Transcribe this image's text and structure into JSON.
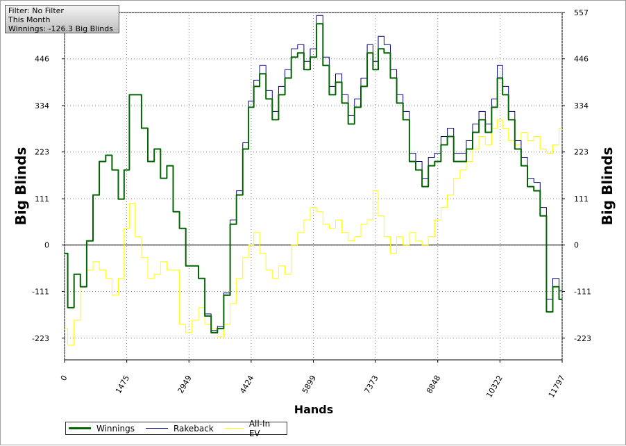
{
  "info": {
    "filter": "Filter: No Filter",
    "period": "This Month",
    "winnings": "Winnings: -126.3 Big Blinds"
  },
  "chart_data": {
    "type": "line",
    "xlabel": "Hands",
    "ylabel_left": "Big Blinds",
    "ylabel_right": "Big Blinds",
    "xlim": [
      0,
      11797
    ],
    "ylim": [
      -275,
      557
    ],
    "x_ticks": [
      "0",
      "1475",
      "2949",
      "4424",
      "5899",
      "7373",
      "8848",
      "10322",
      "11797"
    ],
    "y_ticks": [
      "557",
      "446",
      "334",
      "223",
      "111",
      "0",
      "-111",
      "-223"
    ],
    "grid": true,
    "legend_position": "bottom-left",
    "x": [
      0,
      150,
      300,
      450,
      600,
      750,
      900,
      1050,
      1200,
      1350,
      1475,
      1600,
      1750,
      1900,
      2050,
      2200,
      2350,
      2500,
      2650,
      2800,
      2949,
      3100,
      3250,
      3400,
      3550,
      3700,
      3850,
      4000,
      4150,
      4300,
      4424,
      4550,
      4700,
      4850,
      5000,
      5150,
      5300,
      5450,
      5600,
      5750,
      5899,
      6050,
      6200,
      6350,
      6500,
      6650,
      6800,
      6950,
      7100,
      7250,
      7373,
      7500,
      7650,
      7800,
      7950,
      8100,
      8250,
      8400,
      8550,
      8700,
      8848,
      9000,
      9150,
      9300,
      9450,
      9600,
      9750,
      9900,
      10050,
      10200,
      10322,
      10450,
      10600,
      10750,
      10900,
      11050,
      11200,
      11350,
      11500,
      11650,
      11797
    ],
    "series": [
      {
        "name": "Winnings",
        "color": "#006400",
        "values": [
          -20,
          -150,
          -70,
          -100,
          10,
          120,
          200,
          215,
          180,
          110,
          180,
          360,
          360,
          280,
          200,
          230,
          160,
          190,
          80,
          40,
          -50,
          -50,
          -80,
          -170,
          -210,
          -200,
          -120,
          50,
          120,
          230,
          330,
          380,
          410,
          350,
          300,
          360,
          400,
          450,
          460,
          420,
          450,
          530,
          430,
          360,
          390,
          340,
          290,
          330,
          380,
          460,
          420,
          470,
          460,
          400,
          340,
          300,
          200,
          180,
          140,
          190,
          200,
          240,
          260,
          200,
          200,
          230,
          270,
          300,
          270,
          330,
          400,
          360,
          300,
          230,
          190,
          140,
          130,
          70,
          -160,
          -100,
          -130
        ]
      },
      {
        "name": "Rakeback",
        "color": "#000080",
        "values": [
          -20,
          -150,
          -70,
          -100,
          10,
          120,
          200,
          215,
          180,
          110,
          180,
          360,
          360,
          280,
          200,
          230,
          160,
          190,
          80,
          40,
          -50,
          -50,
          -80,
          -165,
          -205,
          -195,
          -115,
          60,
          130,
          245,
          345,
          395,
          430,
          370,
          320,
          380,
          420,
          470,
          480,
          440,
          470,
          550,
          450,
          380,
          410,
          360,
          310,
          350,
          400,
          480,
          440,
          500,
          480,
          420,
          360,
          320,
          220,
          200,
          160,
          210,
          220,
          260,
          280,
          220,
          220,
          250,
          290,
          320,
          290,
          350,
          430,
          380,
          320,
          250,
          210,
          160,
          150,
          90,
          -130,
          -80,
          -110
        ]
      },
      {
        "name": "All-In EV",
        "color": "#ffff00",
        "values": [
          -200,
          -240,
          -180,
          -100,
          -60,
          -40,
          -60,
          -80,
          -120,
          -80,
          40,
          100,
          20,
          -30,
          -80,
          -70,
          -40,
          -60,
          -60,
          -190,
          -210,
          -180,
          -150,
          -190,
          -200,
          -220,
          -190,
          -140,
          -80,
          -30,
          0,
          30,
          -20,
          -60,
          -80,
          -50,
          -70,
          0,
          30,
          60,
          90,
          80,
          50,
          40,
          60,
          30,
          10,
          20,
          50,
          60,
          130,
          70,
          20,
          -20,
          20,
          0,
          30,
          10,
          0,
          20,
          60,
          90,
          120,
          160,
          180,
          200,
          230,
          260,
          240,
          280,
          300,
          280,
          250,
          240,
          270,
          250,
          260,
          230,
          220,
          240,
          280
        ]
      }
    ]
  }
}
